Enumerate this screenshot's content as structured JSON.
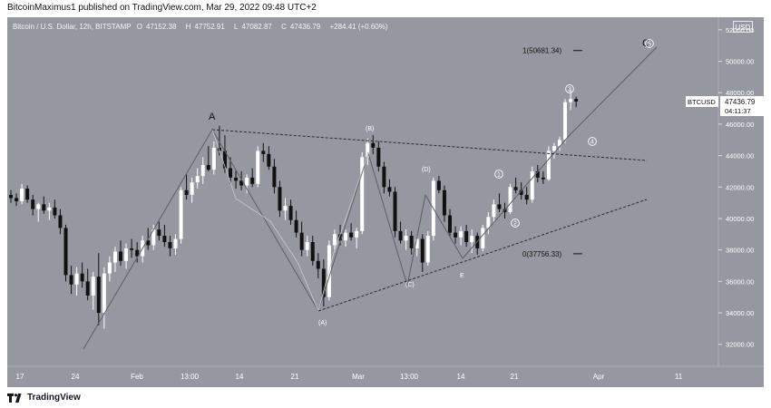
{
  "publisher_line": "BitcoinMaximus1 published on TradingView.com, Mar 29, 2022 09:48 UTC+2",
  "symbol": {
    "name": "Bitcoin / U.S. Dollar, 12h, BITSTAMP",
    "open_label": "O",
    "open": "47152.38",
    "high_label": "H",
    "high": "47752.91",
    "low_label": "L",
    "low": "47082.87",
    "close_label": "C",
    "close": "47436.79",
    "change": "+284.41 (+0.60%)"
  },
  "currency_badge": "USD",
  "price_tag": {
    "ticker": "BTCUSD",
    "price": "47436.79",
    "countdown": "04:11:37"
  },
  "footer": {
    "brand": "TradingView"
  },
  "colors": {
    "background": "#9598a1",
    "candle_up": "#ffffff",
    "candle_down": "#111111",
    "trendline": "#2a2a2a",
    "wave_label": "#ffffff"
  },
  "chart_data": {
    "type": "candlestick",
    "title": "Bitcoin / U.S. Dollar, 12h, BITSTAMP",
    "ylim": [
      30600,
      52800
    ],
    "y_ticks": [
      "52000.00",
      "50000.00",
      "48000.00",
      "46000.00",
      "44000.00",
      "42000.00",
      "40000.00",
      "38000.00",
      "36000.00",
      "34000.00",
      "32000.00"
    ],
    "x_ticks": [
      "17",
      "24",
      "Feb",
      "13:00",
      "14",
      "21",
      "Mar",
      "13:00",
      "14",
      "21",
      "Apr",
      "11"
    ],
    "grid": false,
    "candles": [
      [
        41.5,
        41.8,
        41.0,
        41.3
      ],
      [
        41.3,
        41.6,
        40.8,
        41.1
      ],
      [
        41.1,
        42.2,
        40.9,
        41.9
      ],
      [
        41.9,
        42.1,
        41.0,
        41.2
      ],
      [
        41.2,
        41.5,
        40.2,
        40.6
      ],
      [
        40.6,
        41.0,
        39.8,
        40.9
      ],
      [
        40.9,
        41.4,
        40.3,
        40.5
      ],
      [
        40.5,
        41.0,
        39.9,
        40.7
      ],
      [
        40.7,
        41.2,
        40.0,
        40.2
      ],
      [
        40.2,
        40.6,
        39.0,
        39.4
      ],
      [
        39.4,
        39.6,
        36.0,
        36.4
      ],
      [
        36.4,
        37.0,
        35.2,
        35.8
      ],
      [
        35.8,
        36.9,
        35.1,
        36.5
      ],
      [
        36.5,
        37.2,
        35.6,
        36.0
      ],
      [
        36.0,
        36.8,
        34.8,
        35.1
      ],
      [
        35.1,
        36.6,
        34.2,
        36.3
      ],
      [
        36.3,
        37.8,
        33.2,
        34.0
      ],
      [
        34.0,
        36.9,
        33.0,
        36.5
      ],
      [
        36.5,
        37.6,
        36.0,
        37.2
      ],
      [
        37.2,
        38.2,
        36.6,
        37.9
      ],
      [
        37.9,
        38.6,
        37.0,
        37.3
      ],
      [
        37.3,
        38.4,
        36.8,
        38.1
      ],
      [
        38.1,
        38.7,
        37.5,
        38.0
      ],
      [
        38.0,
        38.5,
        37.2,
        37.6
      ],
      [
        37.6,
        38.9,
        37.2,
        38.6
      ],
      [
        38.6,
        39.4,
        38.0,
        38.3
      ],
      [
        38.3,
        39.6,
        38.0,
        39.3
      ],
      [
        39.3,
        39.8,
        38.6,
        38.9
      ],
      [
        38.9,
        39.6,
        38.2,
        38.5
      ],
      [
        38.5,
        38.9,
        37.6,
        38.1
      ],
      [
        38.1,
        39.0,
        37.7,
        38.7
      ],
      [
        38.7,
        42.0,
        38.4,
        41.8
      ],
      [
        41.8,
        42.8,
        41.2,
        41.5
      ],
      [
        41.5,
        42.6,
        41.0,
        42.3
      ],
      [
        42.3,
        43.2,
        41.9,
        42.7
      ],
      [
        42.7,
        43.9,
        42.2,
        43.4
      ],
      [
        43.4,
        44.6,
        43.0,
        43.1
      ],
      [
        43.1,
        44.9,
        42.8,
        44.5
      ],
      [
        44.5,
        45.9,
        44.0,
        44.3
      ],
      [
        44.3,
        45.3,
        42.9,
        43.2
      ],
      [
        43.2,
        43.9,
        42.2,
        42.6
      ],
      [
        42.6,
        43.1,
        41.9,
        42.4
      ],
      [
        42.4,
        43.0,
        41.8,
        42.1
      ],
      [
        42.1,
        42.8,
        41.6,
        42.6
      ],
      [
        42.6,
        43.2,
        42.0,
        42.2
      ],
      [
        42.2,
        44.6,
        42.0,
        44.3
      ],
      [
        44.3,
        44.8,
        43.6,
        44.1
      ],
      [
        44.1,
        44.6,
        43.1,
        43.3
      ],
      [
        43.3,
        43.8,
        41.6,
        42.0
      ],
      [
        42.0,
        42.4,
        40.1,
        40.5
      ],
      [
        40.5,
        41.3,
        39.9,
        40.8
      ],
      [
        40.8,
        41.2,
        39.6,
        39.9
      ],
      [
        39.9,
        40.5,
        38.8,
        39.1
      ],
      [
        39.1,
        39.8,
        37.6,
        38.0
      ],
      [
        38.0,
        38.9,
        37.6,
        38.5
      ],
      [
        38.5,
        38.9,
        37.0,
        37.3
      ],
      [
        37.3,
        37.8,
        36.2,
        36.8
      ],
      [
        36.8,
        37.4,
        34.4,
        35.0
      ],
      [
        35.0,
        38.6,
        34.8,
        38.3
      ],
      [
        38.3,
        39.3,
        37.9,
        39.0
      ],
      [
        39.0,
        39.6,
        38.3,
        38.6
      ],
      [
        38.6,
        39.3,
        38.2,
        39.1
      ],
      [
        39.1,
        39.7,
        38.6,
        38.8
      ],
      [
        38.8,
        39.4,
        38.1,
        39.2
      ],
      [
        39.2,
        44.2,
        39.0,
        43.9
      ],
      [
        43.9,
        45.1,
        43.4,
        44.8
      ],
      [
        44.8,
        45.3,
        44.1,
        44.5
      ],
      [
        44.5,
        44.9,
        43.0,
        43.3
      ],
      [
        43.3,
        43.6,
        41.6,
        42.0
      ],
      [
        42.0,
        42.5,
        41.4,
        41.7
      ],
      [
        41.7,
        42.0,
        38.8,
        39.2
      ],
      [
        39.2,
        39.8,
        38.4,
        38.6
      ],
      [
        38.6,
        39.3,
        38.0,
        38.9
      ],
      [
        38.9,
        39.2,
        37.7,
        38.1
      ],
      [
        38.1,
        38.9,
        37.6,
        38.7
      ],
      [
        38.7,
        39.0,
        36.6,
        37.2
      ],
      [
        37.2,
        39.2,
        37.0,
        38.9
      ],
      [
        38.9,
        42.6,
        38.6,
        42.4
      ],
      [
        42.4,
        42.7,
        41.6,
        41.8
      ],
      [
        41.8,
        42.1,
        39.8,
        40.2
      ],
      [
        40.2,
        40.6,
        38.8,
        39.1
      ],
      [
        39.1,
        39.5,
        38.4,
        38.8
      ],
      [
        38.8,
        39.5,
        38.3,
        39.2
      ],
      [
        39.2,
        39.6,
        38.2,
        38.5
      ],
      [
        38.5,
        39.3,
        37.8,
        38.9
      ],
      [
        38.9,
        39.1,
        37.7,
        38.1
      ],
      [
        38.1,
        39.6,
        37.9,
        39.4
      ],
      [
        39.4,
        40.4,
        39.0,
        40.1
      ],
      [
        40.1,
        41.2,
        39.7,
        40.9
      ],
      [
        40.9,
        41.6,
        40.4,
        40.6
      ],
      [
        40.6,
        41.0,
        40.0,
        40.4
      ],
      [
        40.4,
        42.2,
        40.3,
        42.0
      ],
      [
        42.0,
        42.6,
        41.6,
        41.8
      ],
      [
        41.8,
        42.3,
        41.2,
        41.5
      ],
      [
        41.5,
        42.0,
        40.9,
        41.2
      ],
      [
        41.2,
        43.3,
        41.0,
        43.0
      ],
      [
        43.0,
        43.4,
        42.3,
        42.6
      ],
      [
        42.6,
        43.0,
        42.2,
        42.5
      ],
      [
        42.5,
        44.6,
        42.4,
        44.3
      ],
      [
        44.3,
        44.8,
        43.8,
        44.6
      ],
      [
        44.6,
        45.2,
        44.3,
        45.0
      ],
      [
        45.0,
        47.6,
        44.8,
        47.4
      ],
      [
        47.4,
        48.2,
        46.9,
        47.6
      ],
      [
        47.6,
        47.75,
        47.08,
        47.44
      ]
    ],
    "price_levels": [
      {
        "label": "1(50681.34)",
        "value": 50681.34
      },
      {
        "label": "0(37756.33)",
        "value": 37756.33
      }
    ],
    "wave_labels": {
      "primary": [
        "A",
        "C"
      ],
      "bracketed": [
        "(A)",
        "(B)",
        "(C)",
        "(D)",
        "E"
      ],
      "circled": [
        "1",
        "2",
        "3",
        "4",
        "5"
      ]
    }
  }
}
